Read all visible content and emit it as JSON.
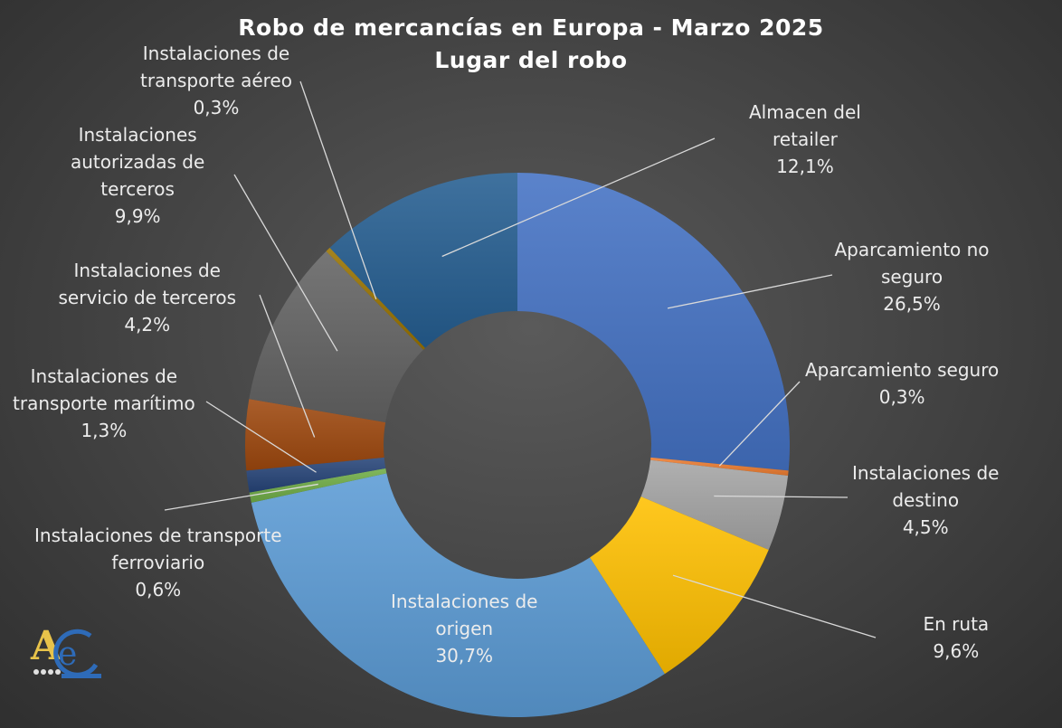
{
  "title_line1": "Robo de mercancías en Europa - Marzo 2025",
  "title_line2": "Lugar del robo",
  "chart_data": {
    "type": "pie",
    "donut": true,
    "title": "Robo de mercancías en Europa - Marzo 2025 / Lugar del robo",
    "unit": "%",
    "slices": [
      {
        "label": "Aparcamiento no seguro",
        "value": 26.5,
        "display": "26,5%",
        "color": "#4472c4"
      },
      {
        "label": "Aparcamiento seguro",
        "value": 0.3,
        "display": "0,3%",
        "color": "#ed7d31"
      },
      {
        "label": "Instalaciones de destino",
        "value": 4.5,
        "display": "4,5%",
        "color": "#a5a5a5"
      },
      {
        "label": "En ruta",
        "value": 9.6,
        "display": "9,6%",
        "color": "#ffc000"
      },
      {
        "label": "Instalaciones de origen",
        "value": 30.7,
        "display": "30,7%",
        "color": "#5b9bd5"
      },
      {
        "label": "Instalaciones de transporte ferroviario",
        "value": 0.6,
        "display": "0,6%",
        "color": "#70ad47"
      },
      {
        "label": "Instalaciones de transporte marítimo",
        "value": 1.3,
        "display": "1,3%",
        "color": "#264478"
      },
      {
        "label": "Instalaciones de servicio de terceros",
        "value": 4.2,
        "display": "4,2%",
        "color": "#9e480e"
      },
      {
        "label": "Instalaciones autorizadas de terceros",
        "value": 9.9,
        "display": "9,9%",
        "color": "#636363"
      },
      {
        "label": "Instalaciones de transporte aéreo",
        "value": 0.3,
        "display": "0,3%",
        "color": "#997300"
      },
      {
        "label": "Almacen del retailer",
        "value": 12.1,
        "display": "12,1%",
        "color": "#255e91"
      }
    ]
  },
  "label_lines": {
    "s0": [
      "Aparcamiento no",
      "seguro"
    ],
    "s1": [
      "Aparcamiento seguro"
    ],
    "s2": [
      "Instalaciones de",
      "destino"
    ],
    "s3": [
      "En ruta"
    ],
    "s4": [
      "Instalaciones de",
      "origen"
    ],
    "s5": [
      "Instalaciones de transporte",
      "ferroviario"
    ],
    "s6": [
      "Instalaciones de",
      "transporte marítimo"
    ],
    "s7": [
      "Instalaciones de",
      "servicio de terceros"
    ],
    "s8": [
      "Instalaciones",
      "autorizadas de",
      "terceros"
    ],
    "s9": [
      "Instalaciones de",
      "transporte aéreo"
    ],
    "s10": [
      "Almacen del",
      "retailer"
    ]
  },
  "logo": {
    "text": "AeC",
    "icon": "aec-logo-icon"
  }
}
